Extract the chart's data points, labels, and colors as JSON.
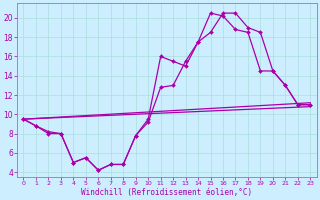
{
  "background_color": "#cceeff",
  "line_color": "#aa00aa",
  "xlabel": "Windchill (Refroidissement éolien,°C)",
  "ylim": [
    3.5,
    21.5
  ],
  "xlim": [
    -0.5,
    23.5
  ],
  "yticks": [
    4,
    6,
    8,
    10,
    12,
    14,
    16,
    18,
    20
  ],
  "xticks": [
    0,
    1,
    2,
    3,
    4,
    5,
    6,
    7,
    8,
    9,
    10,
    11,
    12,
    13,
    14,
    15,
    16,
    17,
    18,
    19,
    20,
    21,
    22,
    23
  ],
  "series1_x": [
    0,
    1,
    2,
    3,
    4,
    5,
    6,
    7,
    8,
    9,
    10,
    11,
    12,
    13,
    14,
    15,
    16,
    17,
    18,
    19,
    20,
    21,
    22,
    23
  ],
  "series1_y": [
    9.5,
    8.8,
    8.0,
    8.0,
    5.0,
    5.5,
    4.2,
    4.8,
    4.8,
    7.8,
    9.2,
    12.8,
    13.0,
    15.5,
    17.5,
    18.5,
    20.5,
    20.5,
    19.0,
    18.5,
    14.5,
    13.0,
    11.0,
    11.0
  ],
  "series2_x": [
    0,
    1,
    2,
    3,
    4,
    5,
    6,
    7,
    8,
    9,
    10,
    11,
    12,
    13,
    14,
    15,
    16,
    17,
    18,
    19,
    20,
    21,
    22,
    23
  ],
  "series2_y": [
    9.5,
    8.8,
    8.2,
    8.0,
    5.0,
    5.5,
    4.2,
    4.8,
    4.8,
    7.8,
    9.5,
    16.0,
    15.5,
    15.0,
    17.5,
    20.5,
    20.2,
    18.8,
    18.5,
    14.5,
    14.5,
    13.0,
    11.0,
    11.0
  ],
  "line1_x": [
    0,
    23
  ],
  "line1_y": [
    9.5,
    11.2
  ],
  "line2_x": [
    0,
    23
  ],
  "line2_y": [
    9.5,
    10.8
  ],
  "grid_color": "#aadddd",
  "spine_color": "#888888",
  "xlabel_fontsize": 5.5,
  "tick_fontsize_x": 4.5,
  "tick_fontsize_y": 5.5,
  "marker": "D",
  "markersize": 2.0,
  "linewidth": 0.9
}
